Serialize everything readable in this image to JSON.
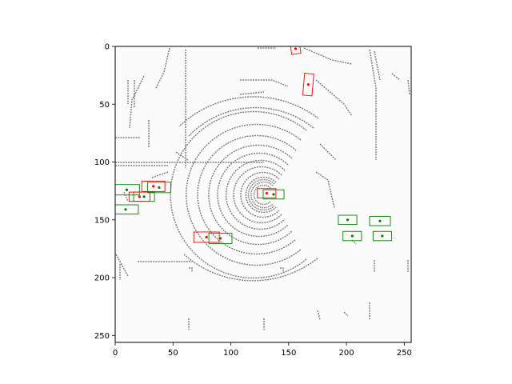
{
  "chart_data": {
    "type": "scatter",
    "title": "",
    "xlabel": "",
    "ylabel": "",
    "xlim": [
      0,
      256
    ],
    "ylim": [
      256,
      0
    ],
    "y_inverted": true,
    "grid": false,
    "legend": "none",
    "xticks": [
      0,
      50,
      100,
      150,
      200,
      250
    ],
    "yticks": [
      0,
      50,
      100,
      150,
      200,
      250
    ],
    "colors": {
      "background": "#fbfbfb",
      "lidar": "#808080",
      "ground_truth": "#008000",
      "prediction": "#ff0000"
    },
    "ground_truth_boxes": [
      {
        "cx": 10,
        "cy": 124,
        "w": 22,
        "h": 9,
        "angle": 0
      },
      {
        "cx": 38,
        "cy": 122,
        "w": 20,
        "h": 9,
        "angle": 0
      },
      {
        "cx": 25,
        "cy": 130,
        "w": 18,
        "h": 8,
        "angle": 0
      },
      {
        "cx": 9,
        "cy": 141,
        "w": 22,
        "h": 8,
        "angle": 0
      },
      {
        "cx": 137,
        "cy": 128,
        "w": 18,
        "h": 8,
        "angle": 0
      },
      {
        "cx": 201,
        "cy": 150,
        "w": 16,
        "h": 8,
        "angle": 0
      },
      {
        "cx": 229,
        "cy": 151,
        "w": 18,
        "h": 8,
        "angle": 0
      },
      {
        "cx": 205,
        "cy": 164,
        "w": 16,
        "h": 8,
        "angle": 0
      },
      {
        "cx": 231,
        "cy": 164,
        "w": 16,
        "h": 8,
        "angle": 0
      },
      {
        "cx": 91,
        "cy": 166,
        "w": 20,
        "h": 9,
        "angle": 0
      }
    ],
    "prediction_boxes": [
      {
        "cx": 156,
        "cy": 2,
        "w": 8,
        "h": 9,
        "angle": -8
      },
      {
        "cx": 167,
        "cy": 33,
        "w": 8,
        "h": 19,
        "angle": 5
      },
      {
        "cx": 33,
        "cy": 121,
        "w": 20,
        "h": 9,
        "angle": 0
      },
      {
        "cx": 21,
        "cy": 130,
        "w": 18,
        "h": 8,
        "angle": 0
      },
      {
        "cx": 131,
        "cy": 127,
        "w": 16,
        "h": 8,
        "angle": 0
      },
      {
        "cx": 79,
        "cy": 165,
        "w": 22,
        "h": 9,
        "angle": 0
      }
    ]
  }
}
